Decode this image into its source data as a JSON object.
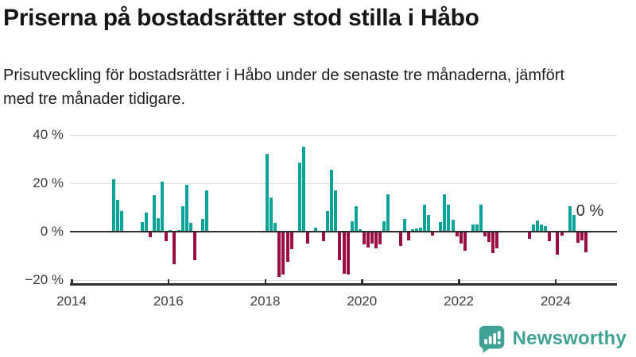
{
  "header": {
    "title": "Priserna på bostadsrätter stod stilla i Håbo",
    "subtitle": "Prisutveckling för bostadsrätter i Håbo under de senaste tre månaderna, jämfört med tre månader tidigare."
  },
  "chart_data": {
    "type": "bar",
    "title": "Priserna på bostadsrätter stod stilla i Håbo",
    "xlabel": "",
    "ylabel": "",
    "unit": "%",
    "ylim": [
      -20,
      40
    ],
    "yticks": [
      40,
      20,
      0,
      -20
    ],
    "ytick_labels": [
      "40 %",
      "20 %",
      "0 %",
      "−20 %"
    ],
    "xtick_labels": [
      "2014",
      "2016",
      "2018",
      "2020",
      "2022",
      "2024"
    ],
    "x_start_month": "2014-01",
    "x_end_month": "2025-03",
    "grid": true,
    "legend": false,
    "colors": {
      "positive": "#0CA39B",
      "negative": "#990F44"
    },
    "annotation": {
      "text": "0 %",
      "month": "2024-09"
    },
    "points": [
      [
        "2014-11",
        21.5
      ],
      [
        "2014-12",
        13
      ],
      [
        "2015-01",
        8.5
      ],
      [
        "2015-06",
        4
      ],
      [
        "2015-07",
        8
      ],
      [
        "2015-08",
        -2
      ],
      [
        "2015-09",
        15
      ],
      [
        "2015-10",
        5.5
      ],
      [
        "2015-11",
        20.5
      ],
      [
        "2015-12",
        -3.5
      ],
      [
        "2016-01",
        0.5
      ],
      [
        "2016-02",
        -13
      ],
      [
        "2016-03",
        0.8
      ],
      [
        "2016-04",
        10.5
      ],
      [
        "2016-05",
        19.5
      ],
      [
        "2016-06",
        3.7
      ],
      [
        "2016-07",
        -11.5
      ],
      [
        "2016-09",
        5.2
      ],
      [
        "2016-10",
        17
      ],
      [
        "2018-01",
        32
      ],
      [
        "2018-02",
        14
      ],
      [
        "2018-03",
        3.5
      ],
      [
        "2018-04",
        -18.5
      ],
      [
        "2018-05",
        -17.5
      ],
      [
        "2018-06",
        -12
      ],
      [
        "2018-07",
        -7
      ],
      [
        "2018-09",
        28.5
      ],
      [
        "2018-10",
        35
      ],
      [
        "2018-11",
        -4.5
      ],
      [
        "2019-01",
        1.5
      ],
      [
        "2019-03",
        -3.5
      ],
      [
        "2019-04",
        8.5
      ],
      [
        "2019-05",
        25.5
      ],
      [
        "2019-06",
        17
      ],
      [
        "2019-07",
        -11.5
      ],
      [
        "2019-08",
        -17
      ],
      [
        "2019-09",
        -17.5
      ],
      [
        "2019-10",
        4.2
      ],
      [
        "2019-11",
        10.4
      ],
      [
        "2019-12",
        1
      ],
      [
        "2020-01",
        -5
      ],
      [
        "2020-02",
        -6.3
      ],
      [
        "2020-03",
        -4.6
      ],
      [
        "2020-04",
        -6.6
      ],
      [
        "2020-05",
        -5
      ],
      [
        "2020-06",
        4.3
      ],
      [
        "2020-07",
        15.5
      ],
      [
        "2020-10",
        -5.7
      ],
      [
        "2020-11",
        5.3
      ],
      [
        "2020-12",
        -3.2
      ],
      [
        "2021-01",
        1
      ],
      [
        "2021-02",
        1.2
      ],
      [
        "2021-03",
        1.5
      ],
      [
        "2021-04",
        11
      ],
      [
        "2021-05",
        7
      ],
      [
        "2021-06",
        -1.3
      ],
      [
        "2021-08",
        4
      ],
      [
        "2021-09",
        15.5
      ],
      [
        "2021-10",
        11.3
      ],
      [
        "2021-11",
        5
      ],
      [
        "2021-12",
        -1.5
      ],
      [
        "2022-01",
        -4.5
      ],
      [
        "2022-02",
        -7.5
      ],
      [
        "2022-04",
        3
      ],
      [
        "2022-05",
        3
      ],
      [
        "2022-06",
        11
      ],
      [
        "2022-07",
        -1.5
      ],
      [
        "2022-08",
        -4
      ],
      [
        "2022-09",
        -8.5
      ],
      [
        "2022-10",
        -6.5
      ],
      [
        "2023-06",
        -2.6
      ],
      [
        "2023-07",
        3.1
      ],
      [
        "2023-08",
        4.5
      ],
      [
        "2023-09",
        3.1
      ],
      [
        "2023-10",
        2.3
      ],
      [
        "2023-11",
        -3.7
      ],
      [
        "2024-01",
        -9.2
      ],
      [
        "2024-02",
        -1.3
      ],
      [
        "2024-04",
        10.5
      ],
      [
        "2024-05",
        6.9
      ],
      [
        "2024-06",
        -4.3
      ],
      [
        "2024-07",
        -3.3
      ],
      [
        "2024-08",
        -8.1
      ],
      [
        "2024-09",
        0
      ]
    ]
  },
  "footer": {
    "brand": "Newsworthy",
    "logo_color": "#3FA295"
  },
  "icons": {
    "logo": "newsworthy-speech-bubble-bar-chart-icon"
  }
}
